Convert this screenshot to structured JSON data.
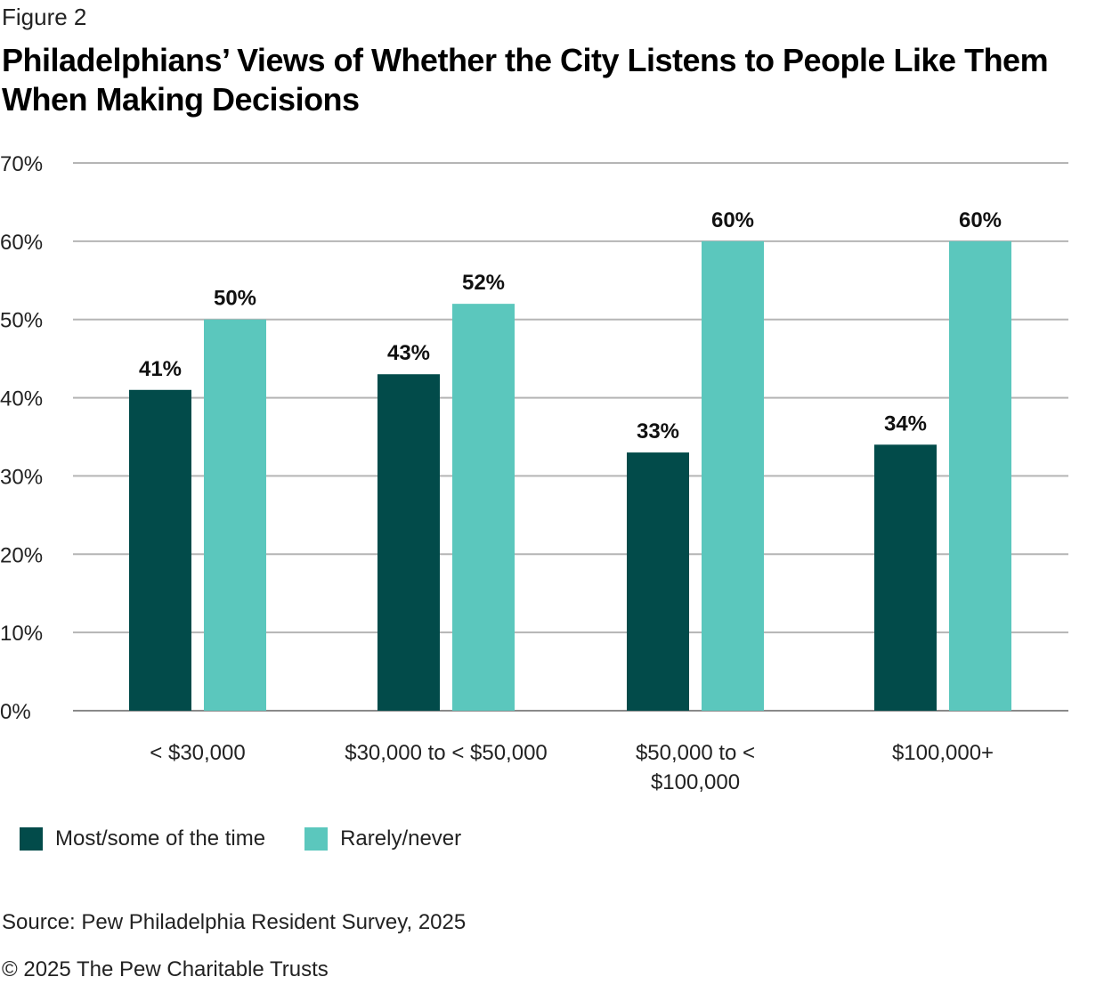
{
  "figure_label": "Figure 2",
  "title": "Philadelphians’ Views of Whether the City Listens to People Like Them When Making Decisions",
  "source": "Source: Pew Philadelphia Resident Survey, 2025",
  "copyright": "© 2025 The Pew Charitable Trusts",
  "colors": {
    "series_dark": "#024b4a",
    "series_light": "#5bc7bd",
    "grid": "#b5b5b5"
  },
  "chart_data": {
    "type": "bar",
    "categories": [
      [
        "< $30,000"
      ],
      [
        "$30,000 to < $50,000"
      ],
      [
        "$50,000 to <",
        "$100,000"
      ],
      [
        "$100,000+"
      ]
    ],
    "series": [
      {
        "name": "Most/some of the time",
        "values": [
          41,
          43,
          33,
          34
        ],
        "labels": [
          "41%",
          "43%",
          "33%",
          "34%"
        ]
      },
      {
        "name": "Rarely/never",
        "values": [
          50,
          52,
          60,
          60
        ],
        "labels": [
          "50%",
          "52%",
          "60%",
          "60%"
        ]
      }
    ],
    "ylim": [
      0,
      70
    ],
    "yticks": [
      "0%",
      "10%",
      "20%",
      "30%",
      "40%",
      "50%",
      "60%",
      "70%"
    ],
    "grid": true,
    "legend_position": "bottom-left"
  }
}
